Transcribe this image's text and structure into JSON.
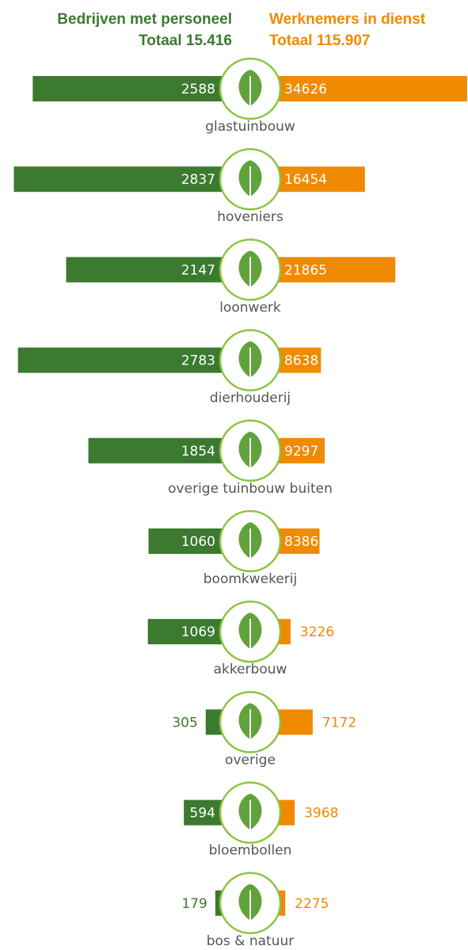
{
  "chart_data": {
    "type": "butterfly",
    "left_title": "Bedrijven met personeel",
    "left_total": "Totaal 15.416",
    "right_title": "Werknemers in dienst",
    "right_total": "Totaal 115.907",
    "categories": [
      "glastuinbouw",
      "hoveniers",
      "loonwerk",
      "dierhouderij",
      "overige tuinbouw buiten",
      "boomkwekerij",
      "akkerbouw",
      "overige",
      "bloembollen",
      "bos & natuur"
    ],
    "series": [
      {
        "name": "Bedrijven met personeel",
        "color": "#3b7a2f",
        "values": [
          2588,
          2837,
          2147,
          2783,
          1854,
          1060,
          1069,
          305,
          594,
          179
        ]
      },
      {
        "name": "Werknemers in dienst",
        "color": "#f08a00",
        "values": [
          34626,
          16454,
          21865,
          8638,
          9297,
          8386,
          3226,
          7172,
          3968,
          2275
        ]
      }
    ]
  }
}
